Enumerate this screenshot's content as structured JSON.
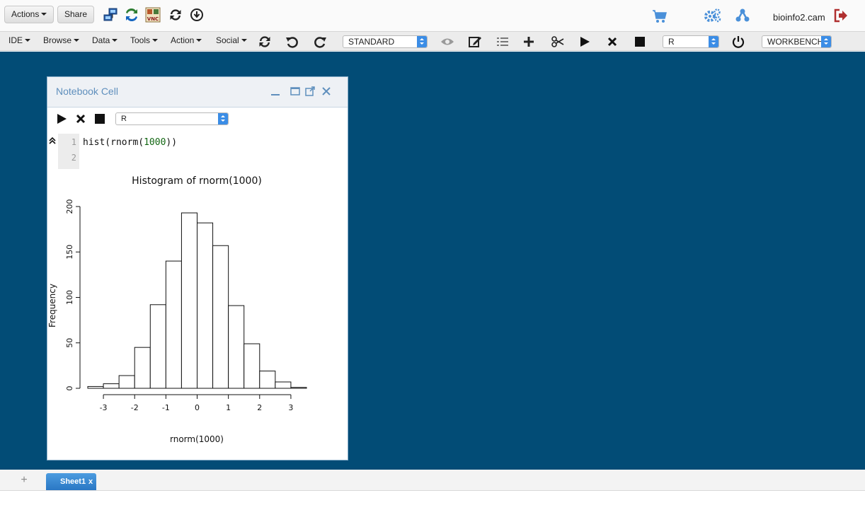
{
  "toolbar": {
    "actions_label": "Actions",
    "share_label": "Share",
    "host": "bioinfo2.cam"
  },
  "menubar": {
    "menus": [
      "IDE",
      "Browse",
      "Data",
      "Tools",
      "Action",
      "Social"
    ],
    "mode_select": "STANDARD",
    "language_select": "R",
    "workbench_select": "WORKBENCH"
  },
  "notebook": {
    "title": "Notebook Cell",
    "language": "R",
    "line_numbers": [
      "1",
      "2"
    ],
    "code": {
      "prefix": "hist(rnorm(",
      "number": "1000",
      "suffix": "))"
    }
  },
  "chart_data": {
    "type": "bar",
    "title": "Histogram of rnorm(1000)",
    "xlabel": "rnorm(1000)",
    "ylabel": "Frequency",
    "bin_edges": [
      -3.5,
      -3,
      -2.5,
      -2,
      -1.5,
      -1,
      -0.5,
      0,
      0.5,
      1,
      1.5,
      2,
      2.5,
      3,
      3.5
    ],
    "values": [
      2,
      5,
      14,
      45,
      92,
      140,
      193,
      182,
      157,
      91,
      49,
      19,
      7,
      1
    ],
    "xlim": [
      -3.5,
      3.5
    ],
    "ylim": [
      0,
      200
    ],
    "xticks": [
      -3,
      -2,
      -1,
      0,
      1,
      2,
      3
    ],
    "yticks": [
      0,
      50,
      100,
      150,
      200
    ]
  },
  "sheets": {
    "add_label": "+",
    "tabs": [
      {
        "label": "Sheet1",
        "close": "x"
      }
    ]
  },
  "colors": {
    "workspace": "#024c76",
    "accent": "#3b8de6",
    "icon_blue": "#4a90d9",
    "logout_red": "#b03030"
  }
}
